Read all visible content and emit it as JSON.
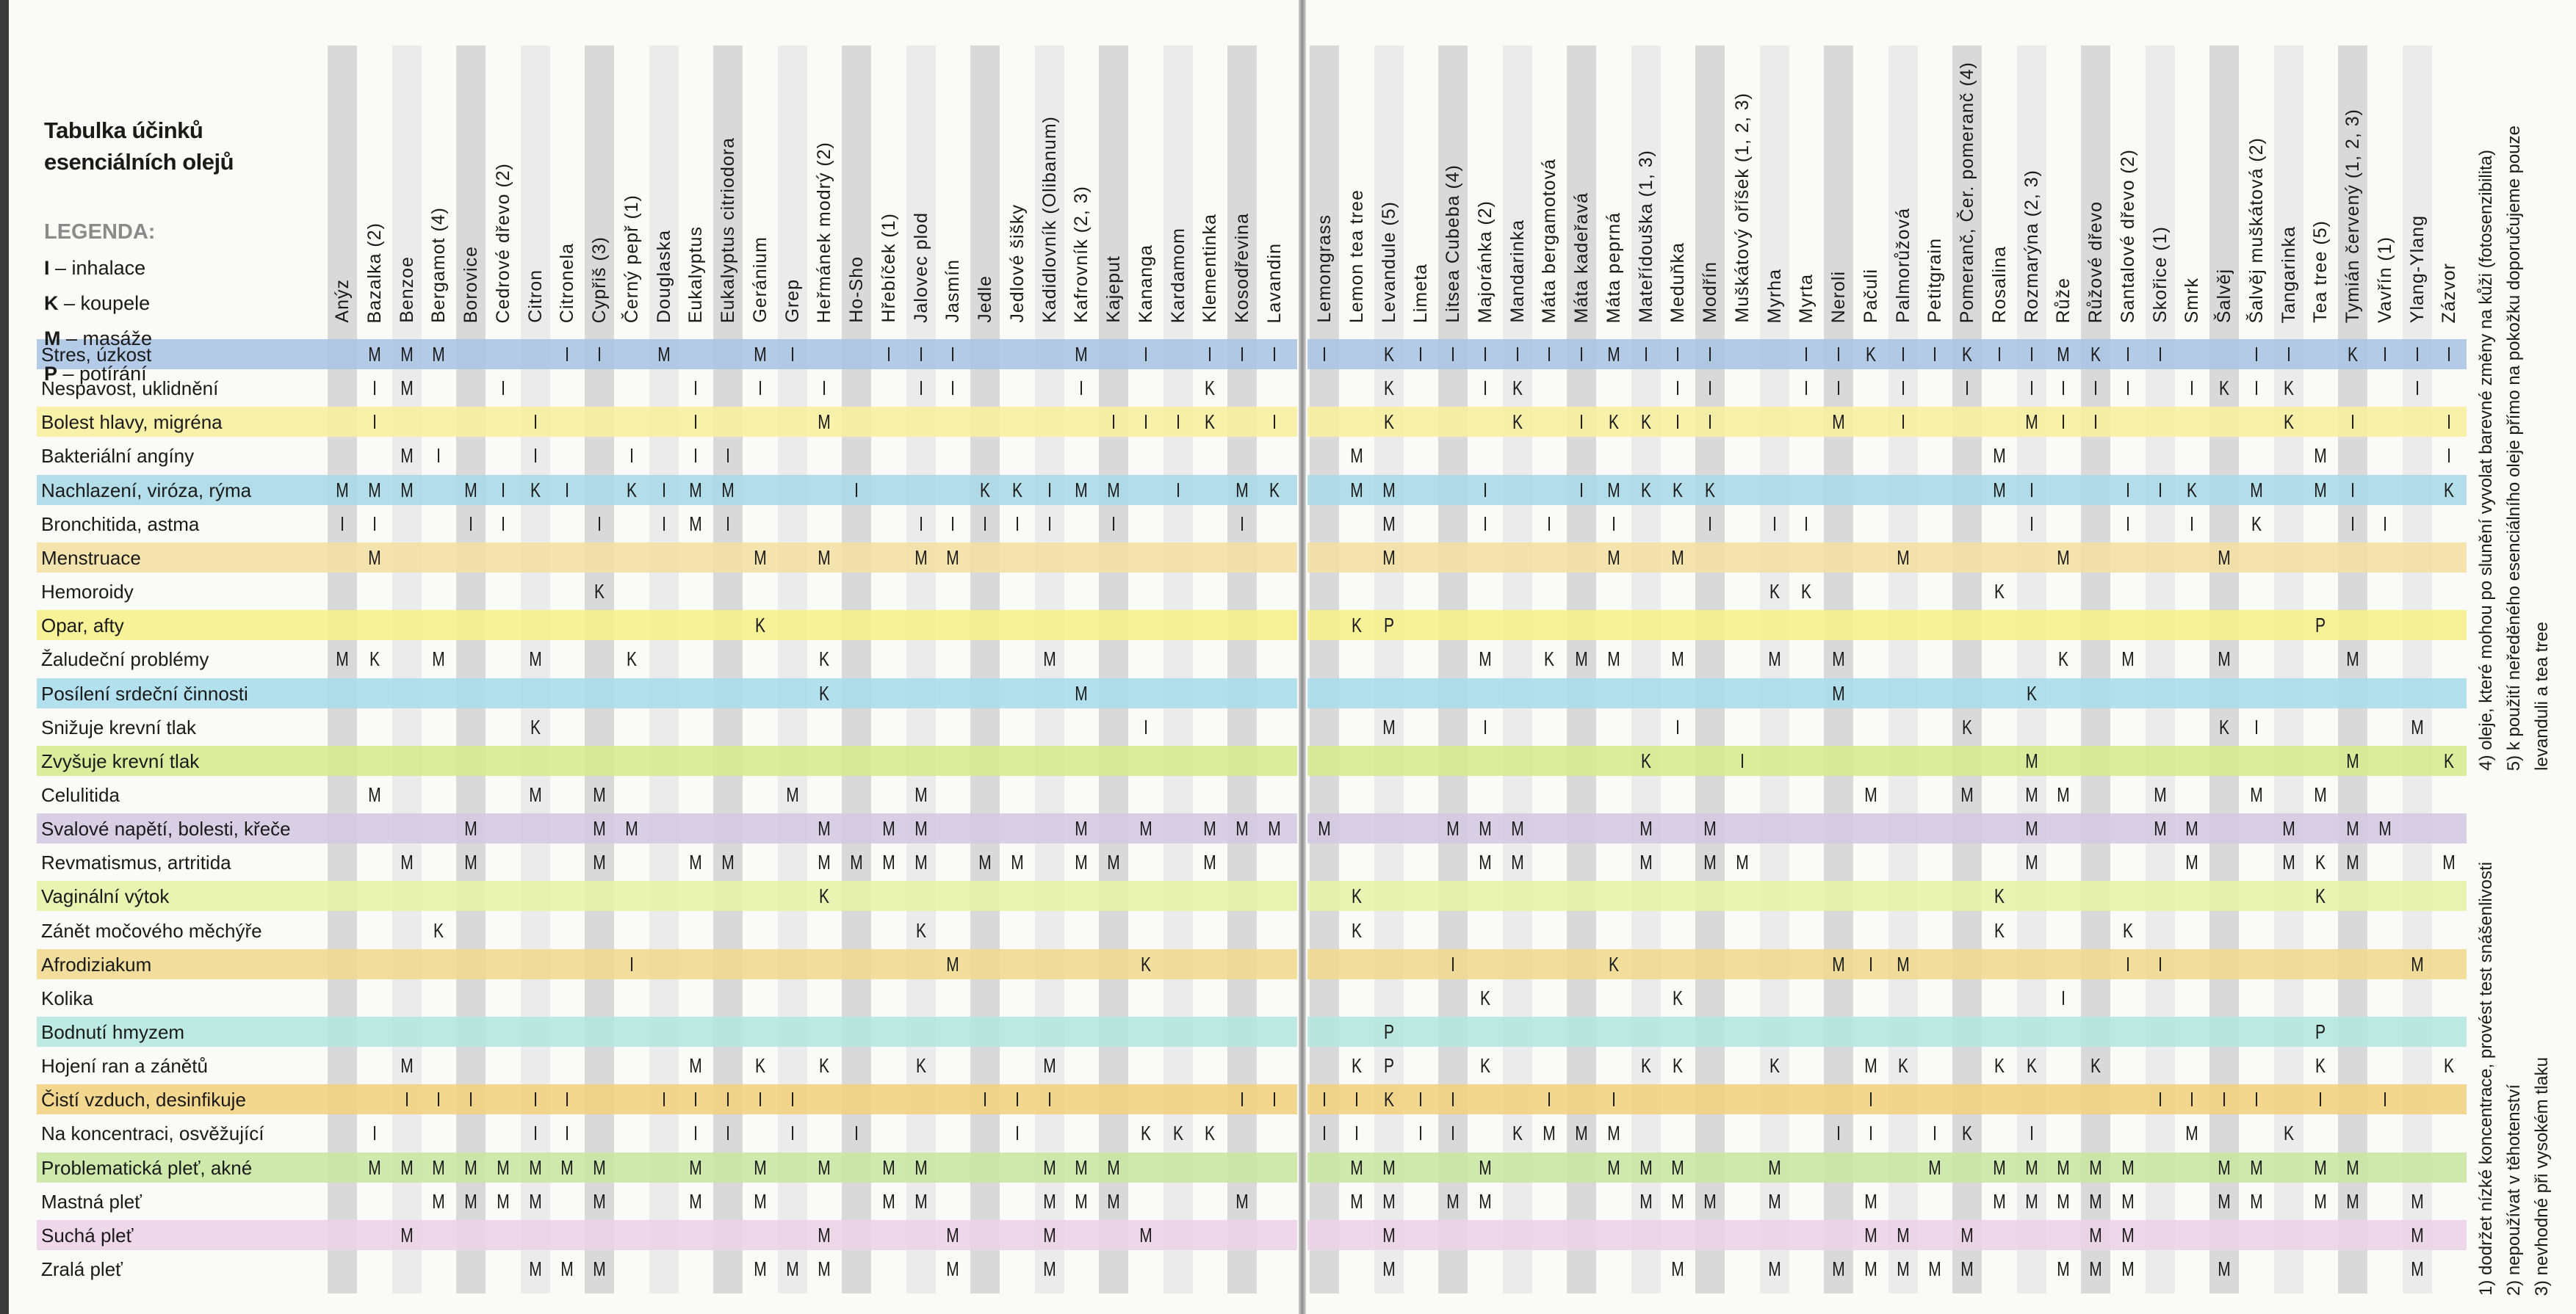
{
  "title": {
    "line1": "Tabulka účinků",
    "line2": "esenciálních olejů"
  },
  "legend": {
    "heading": "LEGENDA:",
    "items": [
      {
        "key": "I",
        "text": " – inhalace"
      },
      {
        "key": "K",
        "text": " – koupele"
      },
      {
        "key": "M",
        "text": " – masáže"
      },
      {
        "key": "P",
        "text": " – potírání"
      }
    ]
  },
  "columns_left": [
    "Anýz",
    "Bazalka (2)",
    "Benzoe",
    "Bergamot (4)",
    "Borovice",
    "Cedrové dřevo (2)",
    "Citron",
    "Citronela",
    "Cypřiš (3)",
    "Černý pepř (1)",
    "Douglaska",
    "Eukalyptus",
    "Eukalyptus citriodora",
    "Geránium",
    "Grep",
    "Heřmánek modrý (2)",
    "Ho-Sho",
    "Hřebíček (1)",
    "Jalovec plod",
    "Jasmín",
    "Jedle",
    "Jedlové šišky",
    "Kadidlovník (Olibanum)",
    "Kafrovník (2, 3)",
    "Kajeput",
    "Kananga",
    "Kardamom",
    "Klementinka",
    "Kosodřevina",
    "Lavandin"
  ],
  "columns_right": [
    "Lemongrass",
    "Lemon tea tree",
    "Levandule (5)",
    "Limeta",
    "Litsea Cubeba (4)",
    "Majoránka (2)",
    "Mandarinka",
    "Máta bergamotová",
    "Máta kadeřavá",
    "Máta peprná",
    "Mateřídouška (1, 3)",
    "Meduňka",
    "Modřín",
    "Muškátový oříšek (1, 2, 3)",
    "Myrha",
    "Myrta",
    "Neroli",
    "Pačuli",
    "Palmorůžová",
    "Petitgrain",
    "Pomeranč, Čer. pomeranč (4)",
    "Rosalina",
    "Rozmarýna (2, 3)",
    "Růže",
    "Růžové dřevo",
    "Santalové dřevo (2)",
    "Skořice (1)",
    "Smrk",
    "Šalvěj",
    "Šalvěj muškátová (2)",
    "Tangarinka",
    "Tea tree (5)",
    "Tymián červený (1, 2, 3)",
    "Vavřín (1)",
    "Ylang-Ylang",
    "Zázvor"
  ],
  "colors": {
    "stripe_dark": "#d9d9d9",
    "stripe_light": "#ebebeb"
  },
  "rows": [
    {
      "label": "Stres, úzkost",
      "color": "#a9c4e4",
      "left": {
        "1": "M",
        "2": "M",
        "3": "M",
        "7": "I",
        "8": "I",
        "10": "M",
        "13": "M",
        "14": "I",
        "17": "I",
        "18": "I",
        "19": "I",
        "23": "M",
        "25": "I",
        "27": "I",
        "28": "I",
        "29": "I"
      },
      "right": {
        "0": "I",
        "2": "K",
        "3": "I",
        "4": "I",
        "5": "I",
        "6": "I",
        "7": "I",
        "8": "I",
        "9": "M",
        "10": "I",
        "11": "I",
        "12": "I",
        "15": "I",
        "16": "I",
        "17": "K",
        "18": "I",
        "19": "I",
        "20": "K",
        "21": "I",
        "22": "I",
        "23": "M",
        "24": "K",
        "25": "I",
        "26": "I",
        "29": "I",
        "30": "I",
        "32": "K",
        "33": "I",
        "34": "I",
        "35": "I"
      }
    },
    {
      "label": "Nespavost, uklidnění",
      "color": "",
      "left": {
        "1": "I",
        "2": "M",
        "5": "I",
        "11": "I",
        "13": "I",
        "15": "I",
        "18": "I",
        "19": "I",
        "23": "I",
        "27": "K"
      },
      "right": {
        "2": "K",
        "5": "I",
        "6": "K",
        "11": "I",
        "12": "I",
        "15": "I",
        "16": "I",
        "18": "I",
        "20": "I",
        "22": "I",
        "23": "I",
        "24": "I",
        "25": "I",
        "27": "I",
        "28": "K",
        "29": "I",
        "30": "K",
        "34": "I"
      }
    },
    {
      "label": "Bolest hlavy, migréna",
      "color": "#f7ef9e",
      "left": {
        "1": "I",
        "6": "I",
        "11": "I",
        "15": "M",
        "24": "I",
        "25": "I",
        "26": "I",
        "27": "K",
        "29": "I"
      },
      "right": {
        "2": "K",
        "6": "K",
        "8": "I",
        "9": "K",
        "10": "K",
        "11": "I",
        "12": "I",
        "16": "M",
        "18": "I",
        "22": "M",
        "23": "I",
        "24": "I",
        "30": "K",
        "32": "I",
        "35": "I"
      }
    },
    {
      "label": "Bakteriální angíny",
      "color": "",
      "left": {
        "2": "M",
        "3": "I",
        "6": "I",
        "9": "I",
        "11": "I",
        "12": "I"
      },
      "right": {
        "1": "M",
        "21": "M",
        "31": "M",
        "35": "I"
      }
    },
    {
      "label": "Nachlazení, viróza, rýma",
      "color": "#a8d8e6",
      "left": {
        "0": "M",
        "1": "M",
        "2": "M",
        "4": "M",
        "5": "I",
        "6": "K",
        "7": "I",
        "9": "K",
        "10": "I",
        "11": "M",
        "12": "M",
        "16": "I",
        "20": "K",
        "21": "K",
        "22": "I",
        "23": "M",
        "24": "M",
        "26": "I",
        "28": "M",
        "29": "K"
      },
      "right": {
        "1": "M",
        "2": "M",
        "5": "I",
        "8": "I",
        "9": "M",
        "10": "K",
        "11": "K",
        "12": "K",
        "21": "M",
        "22": "I",
        "25": "I",
        "26": "I",
        "27": "K",
        "29": "M",
        "31": "M",
        "32": "I",
        "35": "K"
      }
    },
    {
      "label": "Bronchitida, astma",
      "color": "",
      "left": {
        "0": "I",
        "1": "I",
        "4": "I",
        "5": "I",
        "8": "I",
        "10": "I",
        "11": "M",
        "12": "I",
        "18": "I",
        "19": "I",
        "20": "I",
        "21": "I",
        "22": "I",
        "24": "I",
        "28": "I"
      },
      "right": {
        "2": "M",
        "5": "I",
        "7": "I",
        "9": "I",
        "12": "I",
        "14": "I",
        "15": "I",
        "22": "I",
        "25": "I",
        "27": "I",
        "29": "K",
        "32": "I",
        "33": "I"
      }
    },
    {
      "label": "Menstruace",
      "color": "#f3dfa0",
      "left": {
        "1": "M",
        "13": "M",
        "15": "M",
        "18": "M",
        "19": "M"
      },
      "right": {
        "2": "M",
        "9": "M",
        "11": "M",
        "18": "M",
        "23": "M",
        "28": "M"
      }
    },
    {
      "label": "Hemoroidy",
      "color": "",
      "left": {
        "8": "K"
      },
      "right": {
        "14": "K",
        "15": "K",
        "21": "K"
      }
    },
    {
      "label": "Opar, afty",
      "color": "#f6ef8a",
      "left": {
        "13": "K"
      },
      "right": {
        "1": "K",
        "2": "P",
        "31": "P"
      }
    },
    {
      "label": "Žaludeční problémy",
      "color": "",
      "left": {
        "0": "M",
        "1": "K",
        "3": "M",
        "6": "M",
        "9": "K",
        "15": "K",
        "22": "M"
      },
      "right": {
        "5": "M",
        "7": "K",
        "8": "M",
        "9": "M",
        "11": "M",
        "14": "M",
        "16": "M",
        "23": "K",
        "25": "M",
        "28": "M",
        "32": "M"
      }
    },
    {
      "label": "Posílení srdeční činnosti",
      "color": "#a8dcea",
      "left": {
        "15": "K",
        "23": "M"
      },
      "right": {
        "16": "M",
        "22": "K"
      }
    },
    {
      "label": "Snižuje krevní tlak",
      "color": "",
      "left": {
        "6": "K",
        "25": "I"
      },
      "right": {
        "2": "M",
        "5": "I",
        "11": "I",
        "20": "K",
        "28": "K",
        "29": "I",
        "34": "M"
      }
    },
    {
      "label": "Zvyšuje krevní tlak",
      "color": "#d6ea8e",
      "left": {},
      "right": {
        "10": "K",
        "13": "I",
        "22": "M",
        "32": "M",
        "35": "K"
      }
    },
    {
      "label": "Celulitida",
      "color": "",
      "left": {
        "1": "M",
        "6": "M",
        "8": "M",
        "14": "M",
        "18": "M"
      },
      "right": {
        "17": "M",
        "20": "M",
        "22": "M",
        "23": "M",
        "26": "M",
        "29": "M",
        "31": "M"
      }
    },
    {
      "label": "Svalové napětí, bolesti, křeče",
      "color": "#d3c8e0",
      "left": {
        "4": "M",
        "8": "M",
        "9": "M",
        "15": "M",
        "17": "M",
        "18": "M",
        "23": "M",
        "25": "M",
        "27": "M",
        "28": "M",
        "29": "M"
      },
      "right": {
        "0": "M",
        "4": "M",
        "5": "M",
        "6": "M",
        "10": "M",
        "12": "M",
        "22": "M",
        "26": "M",
        "27": "M",
        "30": "M",
        "32": "M",
        "33": "M"
      }
    },
    {
      "label": "Revmatismus, artritida",
      "color": "",
      "left": {
        "2": "M",
        "4": "M",
        "8": "M",
        "11": "M",
        "12": "M",
        "15": "M",
        "16": "M",
        "17": "M",
        "18": "M",
        "20": "M",
        "21": "M",
        "23": "M",
        "24": "M",
        "27": "M"
      },
      "right": {
        "5": "M",
        "6": "M",
        "10": "M",
        "12": "M",
        "13": "M",
        "22": "M",
        "27": "M",
        "30": "M",
        "31": "K",
        "32": "M",
        "35": "M"
      }
    },
    {
      "label": "Vaginální výtok",
      "color": "#e6f2a8",
      "left": {
        "15": "K"
      },
      "right": {
        "1": "K",
        "21": "K",
        "31": "K"
      }
    },
    {
      "label": "Zánět močového měchýře",
      "color": "",
      "left": {
        "3": "K",
        "18": "K"
      },
      "right": {
        "1": "K",
        "21": "K",
        "25": "K"
      }
    },
    {
      "label": "Afrodiziakum",
      "color": "#efd98e",
      "left": {
        "9": "I",
        "19": "M",
        "25": "K"
      },
      "right": {
        "4": "I",
        "9": "K",
        "16": "M",
        "17": "I",
        "18": "M",
        "25": "I",
        "26": "I",
        "34": "M"
      }
    },
    {
      "label": "Kolika",
      "color": "",
      "left": {},
      "right": {
        "5": "K",
        "11": "K",
        "23": "I"
      }
    },
    {
      "label": "Bodnutí hmyzem",
      "color": "#b4e6df",
      "left": {},
      "right": {
        "2": "P",
        "31": "P"
      }
    },
    {
      "label": "Hojení ran a zánětů",
      "color": "",
      "left": {
        "2": "M",
        "11": "M",
        "13": "K",
        "15": "K",
        "18": "K",
        "22": "M"
      },
      "right": {
        "1": "K",
        "2": "P",
        "5": "K",
        "10": "K",
        "11": "K",
        "14": "K",
        "17": "M",
        "18": "K",
        "21": "K",
        "22": "K",
        "24": "K",
        "31": "K",
        "35": "K"
      }
    },
    {
      "label": "Čistí vzduch, desinfikuje",
      "color": "#f3d27e",
      "left": {
        "2": "I",
        "3": "I",
        "4": "I",
        "6": "I",
        "7": "I",
        "10": "I",
        "11": "I",
        "12": "I",
        "13": "I",
        "14": "I",
        "20": "I",
        "21": "I",
        "22": "I",
        "28": "I",
        "29": "I"
      },
      "right": {
        "0": "I",
        "1": "I",
        "2": "K",
        "3": "I",
        "4": "I",
        "7": "I",
        "9": "I",
        "17": "I",
        "26": "I",
        "27": "I",
        "28": "I",
        "29": "I",
        "31": "I",
        "33": "I"
      }
    },
    {
      "label": "Na koncentraci, osvěžující",
      "color": "",
      "left": {
        "1": "I",
        "6": "I",
        "7": "I",
        "11": "I",
        "12": "I",
        "14": "I",
        "16": "I",
        "21": "I",
        "25": "K",
        "26": "K",
        "27": "K"
      },
      "right": {
        "0": "I",
        "1": "I",
        "3": "I",
        "4": "I",
        "6": "K",
        "7": "M",
        "8": "M",
        "9": "M",
        "16": "I",
        "17": "I",
        "19": "I",
        "20": "K",
        "22": "I",
        "27": "M",
        "30": "K"
      }
    },
    {
      "label": "Problematická pleť, akné",
      "color": "#c8e6a0",
      "left": {
        "1": "M",
        "2": "M",
        "3": "M",
        "4": "M",
        "5": "M",
        "6": "M",
        "7": "M",
        "8": "M",
        "11": "M",
        "13": "M",
        "15": "M",
        "17": "M",
        "18": "M",
        "22": "M",
        "23": "M",
        "24": "M"
      },
      "right": {
        "1": "M",
        "2": "M",
        "5": "M",
        "9": "M",
        "10": "M",
        "11": "M",
        "14": "M",
        "19": "M",
        "21": "M",
        "22": "M",
        "23": "M",
        "24": "M",
        "25": "M",
        "28": "M",
        "29": "M",
        "31": "M",
        "32": "M"
      }
    },
    {
      "label": "Mastná pleť",
      "color": "",
      "left": {
        "3": "M",
        "4": "M",
        "5": "M",
        "6": "M",
        "8": "M",
        "11": "M",
        "13": "M",
        "17": "M",
        "18": "M",
        "22": "M",
        "23": "M",
        "24": "M",
        "28": "M"
      },
      "right": {
        "1": "M",
        "2": "M",
        "4": "M",
        "5": "M",
        "10": "M",
        "11": "M",
        "12": "M",
        "14": "M",
        "17": "M",
        "21": "M",
        "22": "M",
        "23": "M",
        "24": "M",
        "25": "M",
        "28": "M",
        "29": "M",
        "31": "M",
        "32": "M",
        "34": "M"
      }
    },
    {
      "label": "Suchá pleť",
      "color": "#ecd1e6",
      "left": {
        "2": "M",
        "15": "M",
        "19": "M",
        "22": "M",
        "25": "M"
      },
      "right": {
        "2": "M",
        "17": "M",
        "18": "M",
        "20": "M",
        "24": "M",
        "25": "M",
        "34": "M"
      }
    },
    {
      "label": "Zralá pleť",
      "color": "",
      "left": {
        "6": "M",
        "7": "M",
        "8": "M",
        "13": "M",
        "14": "M",
        "15": "M",
        "19": "M",
        "22": "M"
      },
      "right": {
        "2": "M",
        "11": "M",
        "14": "M",
        "16": "M",
        "17": "M",
        "18": "M",
        "19": "M",
        "20": "M",
        "23": "M",
        "24": "M",
        "25": "M",
        "28": "M",
        "34": "M"
      }
    }
  ],
  "footnotes": {
    "n1": "1) dodržet nízké koncentrace, provést test snášenlivosti",
    "n2": "2) nepoužívat v těhotenství",
    "n3": "3) nevhodné při vysokém tlaku",
    "n4": "4) oleje, které mohou po slunění vyvolat barevné změny na kůži (fotosenzibilita)",
    "n5": "5) k použití neředěného esenciálního oleje přímo na pokožku doporučujeme pouze",
    "n5b": "levanduli a tea tree"
  }
}
